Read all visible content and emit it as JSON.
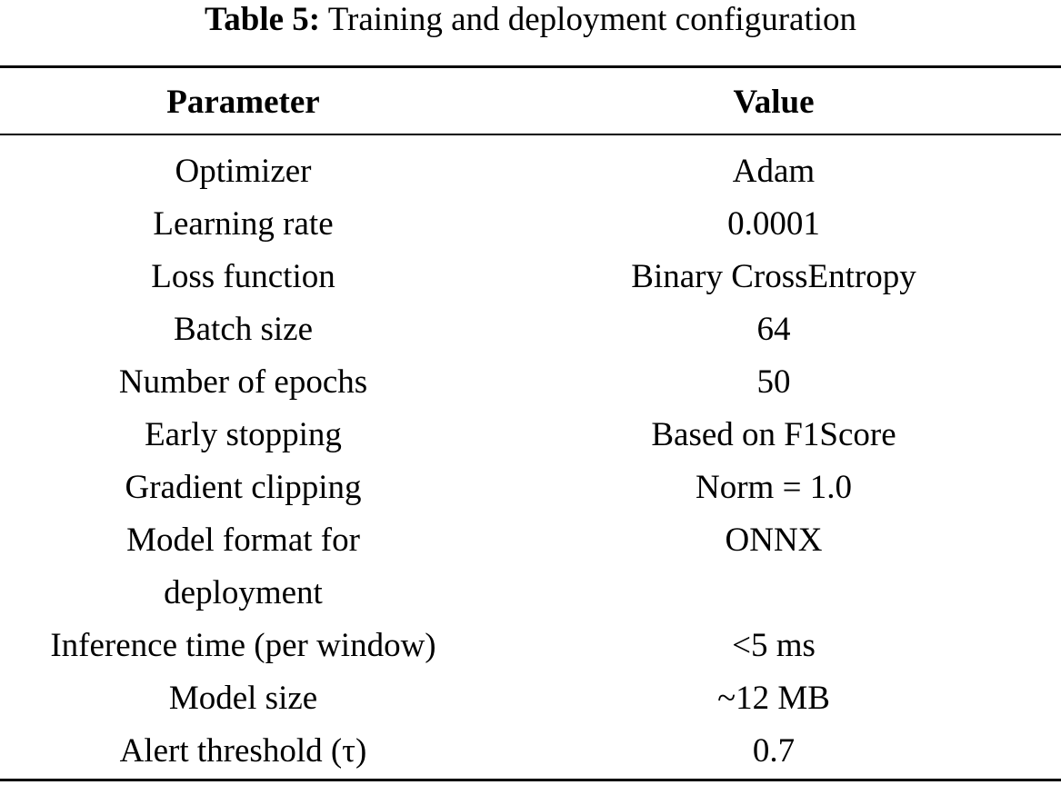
{
  "caption": {
    "label": "Table 5:",
    "text": "Training and deployment configuration"
  },
  "table": {
    "headers": [
      "Parameter",
      "Value"
    ],
    "rows": [
      {
        "parameter": "Optimizer",
        "value": "Adam"
      },
      {
        "parameter": "Learning rate",
        "value": "0.0001"
      },
      {
        "parameter": "Loss function",
        "value": "Binary CrossEntropy"
      },
      {
        "parameter": "Batch size",
        "value": "64"
      },
      {
        "parameter": "Number of epochs",
        "value": "50"
      },
      {
        "parameter": "Early stopping",
        "value": "Based on F1Score"
      },
      {
        "parameter": "Gradient clipping",
        "value": "Norm = 1.0"
      },
      {
        "parameter": "Model format for deployment",
        "value": "ONNX"
      },
      {
        "parameter": "Inference time (per window)",
        "value": "<5 ms"
      },
      {
        "parameter": "Model size",
        "value": "~12 MB"
      },
      {
        "parameter": "Alert threshold (τ)",
        "value": "0.7"
      }
    ]
  }
}
